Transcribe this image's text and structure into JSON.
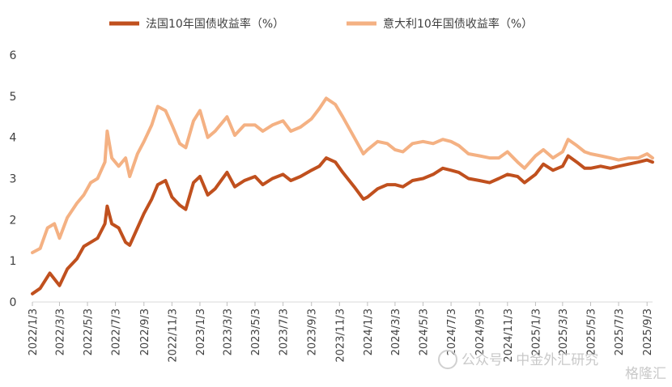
{
  "chart_data": {
    "type": "line",
    "title": "",
    "xlabel": "",
    "ylabel": "",
    "ylim": [
      0,
      6
    ],
    "yticks": [
      "0",
      "1",
      "2",
      "3",
      "4",
      "5",
      "6"
    ],
    "xticks": [
      "2022/1/3",
      "2022/3/3",
      "2022/5/3",
      "2022/7/3",
      "2022/9/3",
      "2022/11/3",
      "2023/1/3",
      "2023/3/3",
      "2023/5/3",
      "2023/7/3",
      "2023/9/3",
      "2023/11/3",
      "2024/1/3",
      "2024/3/3",
      "2024/5/3",
      "2024/7/3",
      "2024/9/3",
      "2024/11/3",
      "2025/1/3",
      "2025/3/3",
      "2025/5/3",
      "2025/7/3",
      "2025/9/3"
    ],
    "legend_position": "top",
    "grid": false,
    "series": [
      {
        "name": "法国10年国债收益率（%）",
        "color": "#c0501e",
        "points": [
          [
            "2022/1/3",
            0.2
          ],
          [
            "2022/1/20",
            0.33
          ],
          [
            "2022/2/10",
            0.7
          ],
          [
            "2022/3/3",
            0.4
          ],
          [
            "2022/3/20",
            0.8
          ],
          [
            "2022/4/10",
            1.05
          ],
          [
            "2022/4/25",
            1.35
          ],
          [
            "2022/5/10",
            1.45
          ],
          [
            "2022/5/25",
            1.55
          ],
          [
            "2022/6/10",
            1.9
          ],
          [
            "2022/6/15",
            2.33
          ],
          [
            "2022/6/25",
            1.9
          ],
          [
            "2022/7/10",
            1.8
          ],
          [
            "2022/7/25",
            1.45
          ],
          [
            "2022/8/3",
            1.38
          ],
          [
            "2022/8/20",
            1.8
          ],
          [
            "2022/9/3",
            2.15
          ],
          [
            "2022/9/20",
            2.5
          ],
          [
            "2022/10/3",
            2.85
          ],
          [
            "2022/10/20",
            2.95
          ],
          [
            "2022/11/3",
            2.55
          ],
          [
            "2022/11/20",
            2.35
          ],
          [
            "2022/12/3",
            2.25
          ],
          [
            "2022/12/20",
            2.9
          ],
          [
            "2023/1/3",
            3.05
          ],
          [
            "2023/1/20",
            2.6
          ],
          [
            "2023/2/5",
            2.75
          ],
          [
            "2023/3/3",
            3.15
          ],
          [
            "2023/3/20",
            2.8
          ],
          [
            "2023/4/10",
            2.95
          ],
          [
            "2023/5/3",
            3.05
          ],
          [
            "2023/5/20",
            2.85
          ],
          [
            "2023/6/10",
            3.0
          ],
          [
            "2023/7/3",
            3.1
          ],
          [
            "2023/7/20",
            2.95
          ],
          [
            "2023/8/10",
            3.05
          ],
          [
            "2023/9/3",
            3.2
          ],
          [
            "2023/9/20",
            3.3
          ],
          [
            "2023/10/5",
            3.5
          ],
          [
            "2023/10/25",
            3.4
          ],
          [
            "2023/11/10",
            3.15
          ],
          [
            "2023/12/5",
            2.8
          ],
          [
            "2023/12/25",
            2.5
          ],
          [
            "2024/1/3",
            2.55
          ],
          [
            "2024/1/25",
            2.75
          ],
          [
            "2024/2/15",
            2.85
          ],
          [
            "2024/3/3",
            2.85
          ],
          [
            "2024/3/20",
            2.8
          ],
          [
            "2024/4/10",
            2.95
          ],
          [
            "2024/5/3",
            3.0
          ],
          [
            "2024/5/25",
            3.1
          ],
          [
            "2024/6/15",
            3.25
          ],
          [
            "2024/7/3",
            3.2
          ],
          [
            "2024/7/20",
            3.15
          ],
          [
            "2024/8/10",
            3.0
          ],
          [
            "2024/9/3",
            2.95
          ],
          [
            "2024/9/25",
            2.9
          ],
          [
            "2024/10/15",
            3.0
          ],
          [
            "2024/11/3",
            3.1
          ],
          [
            "2024/11/25",
            3.05
          ],
          [
            "2024/12/10",
            2.9
          ],
          [
            "2025/1/3",
            3.1
          ],
          [
            "2025/1/20",
            3.35
          ],
          [
            "2025/2/10",
            3.2
          ],
          [
            "2025/3/3",
            3.3
          ],
          [
            "2025/3/15",
            3.55
          ],
          [
            "2025/4/3",
            3.4
          ],
          [
            "2025/4/20",
            3.25
          ],
          [
            "2025/5/3",
            3.25
          ],
          [
            "2025/5/25",
            3.3
          ],
          [
            "2025/6/15",
            3.25
          ],
          [
            "2025/7/3",
            3.3
          ],
          [
            "2025/7/25",
            3.35
          ],
          [
            "2025/8/15",
            3.4
          ],
          [
            "2025/9/3",
            3.45
          ],
          [
            "2025/9/15",
            3.4
          ]
        ]
      },
      {
        "name": "意大利10年国债收益率（%）",
        "color": "#f4b183",
        "points": [
          [
            "2022/1/3",
            1.2
          ],
          [
            "2022/1/20",
            1.3
          ],
          [
            "2022/2/5",
            1.8
          ],
          [
            "2022/2/20",
            1.9
          ],
          [
            "2022/3/3",
            1.55
          ],
          [
            "2022/3/20",
            2.05
          ],
          [
            "2022/4/10",
            2.4
          ],
          [
            "2022/4/25",
            2.6
          ],
          [
            "2022/5/10",
            2.9
          ],
          [
            "2022/5/25",
            3.0
          ],
          [
            "2022/6/10",
            3.4
          ],
          [
            "2022/6/15",
            4.15
          ],
          [
            "2022/6/25",
            3.5
          ],
          [
            "2022/7/10",
            3.3
          ],
          [
            "2022/7/25",
            3.5
          ],
          [
            "2022/8/3",
            3.05
          ],
          [
            "2022/8/20",
            3.6
          ],
          [
            "2022/9/3",
            3.9
          ],
          [
            "2022/9/20",
            4.3
          ],
          [
            "2022/10/3",
            4.75
          ],
          [
            "2022/10/20",
            4.65
          ],
          [
            "2022/11/3",
            4.3
          ],
          [
            "2022/11/20",
            3.85
          ],
          [
            "2022/12/3",
            3.75
          ],
          [
            "2022/12/20",
            4.4
          ],
          [
            "2023/1/3",
            4.65
          ],
          [
            "2023/1/20",
            4.0
          ],
          [
            "2023/2/5",
            4.15
          ],
          [
            "2023/3/3",
            4.5
          ],
          [
            "2023/3/20",
            4.05
          ],
          [
            "2023/4/10",
            4.3
          ],
          [
            "2023/5/3",
            4.3
          ],
          [
            "2023/5/20",
            4.15
          ],
          [
            "2023/6/10",
            4.3
          ],
          [
            "2023/7/3",
            4.4
          ],
          [
            "2023/7/20",
            4.15
          ],
          [
            "2023/8/10",
            4.25
          ],
          [
            "2023/9/3",
            4.45
          ],
          [
            "2023/9/20",
            4.7
          ],
          [
            "2023/10/5",
            4.95
          ],
          [
            "2023/10/25",
            4.8
          ],
          [
            "2023/11/10",
            4.5
          ],
          [
            "2023/12/5",
            4.0
          ],
          [
            "2023/12/25",
            3.6
          ],
          [
            "2024/1/3",
            3.7
          ],
          [
            "2024/1/25",
            3.9
          ],
          [
            "2024/2/15",
            3.85
          ],
          [
            "2024/3/3",
            3.7
          ],
          [
            "2024/3/20",
            3.65
          ],
          [
            "2024/4/10",
            3.85
          ],
          [
            "2024/5/3",
            3.9
          ],
          [
            "2024/5/25",
            3.85
          ],
          [
            "2024/6/15",
            3.95
          ],
          [
            "2024/7/3",
            3.9
          ],
          [
            "2024/7/20",
            3.8
          ],
          [
            "2024/8/10",
            3.6
          ],
          [
            "2024/9/3",
            3.55
          ],
          [
            "2024/9/25",
            3.5
          ],
          [
            "2024/10/15",
            3.5
          ],
          [
            "2024/11/3",
            3.65
          ],
          [
            "2024/11/25",
            3.4
          ],
          [
            "2024/12/10",
            3.25
          ],
          [
            "2025/1/3",
            3.55
          ],
          [
            "2025/1/20",
            3.7
          ],
          [
            "2025/2/10",
            3.5
          ],
          [
            "2025/3/3",
            3.65
          ],
          [
            "2025/3/15",
            3.95
          ],
          [
            "2025/4/3",
            3.8
          ],
          [
            "2025/4/20",
            3.65
          ],
          [
            "2025/5/3",
            3.6
          ],
          [
            "2025/5/25",
            3.55
          ],
          [
            "2025/6/15",
            3.5
          ],
          [
            "2025/7/3",
            3.45
          ],
          [
            "2025/7/25",
            3.5
          ],
          [
            "2025/8/15",
            3.5
          ],
          [
            "2025/9/3",
            3.6
          ],
          [
            "2025/9/15",
            3.5
          ]
        ]
      }
    ]
  },
  "watermark": {
    "line1": "公众号 · 中金外汇研究",
    "line2": "格隆汇"
  }
}
